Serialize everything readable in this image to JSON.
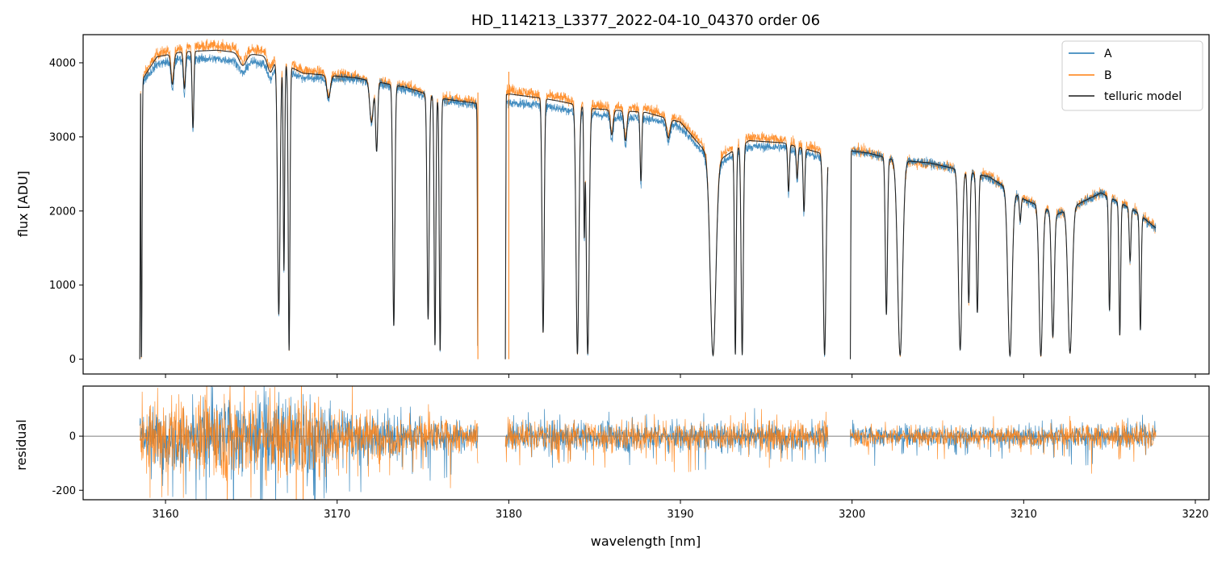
{
  "figure": {
    "title": "HD_114213_L3377_2022-04-10_04370  order 06"
  },
  "colors": {
    "A": "#1f77b4",
    "B": "#ff7f0e",
    "model": "#1a1a1a",
    "zero_line": "#555555"
  },
  "chart_data": [
    {
      "type": "line",
      "panel": "spectrum",
      "xlabel": "",
      "ylabel": "flux [ADU]",
      "xlim": [
        3155.2,
        3220.8
      ],
      "ylim": [
        -200,
        4380
      ],
      "y_ticks": [
        0,
        1000,
        2000,
        3000,
        4000
      ],
      "x_ticks": [
        3160,
        3170,
        3180,
        3190,
        3200,
        3210,
        3220
      ],
      "grid": false,
      "legend_position": "top-right",
      "segments": [
        [
          3158.5,
          3178.2
        ],
        [
          3179.8,
          3198.6
        ],
        [
          3199.9,
          3217.7
        ]
      ],
      "series": [
        {
          "name": "A",
          "note_values": "approximate continuum envelope of series A, nm vs ADU",
          "continuum": [
            [
              3158.5,
              3700
            ],
            [
              3159.5,
              3980
            ],
            [
              3161,
              4060
            ],
            [
              3163,
              4050
            ],
            [
              3166,
              3990
            ],
            [
              3168,
              3800
            ],
            [
              3171,
              3780
            ],
            [
              3174,
              3640
            ],
            [
              3176,
              3500
            ],
            [
              3178.2,
              3420
            ],
            [
              3180,
              3460
            ],
            [
              3182,
              3430
            ],
            [
              3183,
              3380
            ],
            [
              3185,
              3300
            ],
            [
              3188,
              3250
            ],
            [
              3190,
              3130
            ],
            [
              3192,
              2600
            ],
            [
              3194,
              2870
            ],
            [
              3196,
              2860
            ],
            [
              3198.5,
              2700
            ],
            [
              3200,
              2800
            ],
            [
              3201,
              2770
            ],
            [
              3202.5,
              2700
            ],
            [
              3204.5,
              2650
            ],
            [
              3206,
              2560
            ],
            [
              3208,
              2440
            ],
            [
              3210,
              2150
            ],
            [
              3212,
              1950
            ],
            [
              3214.5,
              2240
            ],
            [
              3216.5,
              1990
            ],
            [
              3217.7,
              1760
            ]
          ]
        },
        {
          "name": "B",
          "continuum": [
            [
              3158.5,
              3750
            ],
            [
              3159.5,
              4120
            ],
            [
              3161,
              4220
            ],
            [
              3163,
              4230
            ],
            [
              3166,
              4150
            ],
            [
              3168,
              3900
            ],
            [
              3171,
              3820
            ],
            [
              3174,
              3690
            ],
            [
              3176,
              3540
            ],
            [
              3178.2,
              3470
            ],
            [
              3180,
              3640
            ],
            [
              3182,
              3560
            ],
            [
              3183,
              3530
            ],
            [
              3185,
              3430
            ],
            [
              3188,
              3380
            ],
            [
              3190,
              3230
            ],
            [
              3192,
              2700
            ],
            [
              3194,
              3000
            ],
            [
              3196,
              2960
            ],
            [
              3198.5,
              2800
            ],
            [
              3200,
              2830
            ],
            [
              3201,
              2790
            ],
            [
              3202.5,
              2680
            ],
            [
              3204.5,
              2640
            ],
            [
              3206,
              2580
            ],
            [
              3208,
              2470
            ],
            [
              3210,
              2170
            ],
            [
              3212,
              1970
            ],
            [
              3214.5,
              2250
            ],
            [
              3216.5,
              2010
            ],
            [
              3217.7,
              1780
            ]
          ]
        },
        {
          "name": "telluric model",
          "continuum": [
            [
              3158.5,
              3720
            ],
            [
              3159.5,
              4080
            ],
            [
              3161,
              4150
            ],
            [
              3163,
              4170
            ],
            [
              3166,
              4090
            ],
            [
              3168,
              3860
            ],
            [
              3171,
              3800
            ],
            [
              3174,
              3670
            ],
            [
              3176,
              3520
            ],
            [
              3178.2,
              3450
            ],
            [
              3180,
              3580
            ],
            [
              3182,
              3520
            ],
            [
              3183,
              3480
            ],
            [
              3185,
              3380
            ],
            [
              3188,
              3330
            ],
            [
              3190,
              3200
            ],
            [
              3192,
              2650
            ],
            [
              3194,
              2950
            ],
            [
              3196,
              2920
            ],
            [
              3198.5,
              2760
            ],
            [
              3200,
              2810
            ],
            [
              3201,
              2780
            ],
            [
              3202.5,
              2690
            ],
            [
              3204.5,
              2650
            ],
            [
              3206,
              2570
            ],
            [
              3208,
              2460
            ],
            [
              3210,
              2160
            ],
            [
              3212,
              1960
            ],
            [
              3214.5,
              2245
            ],
            [
              3216.5,
              2000
            ],
            [
              3217.7,
              1770
            ]
          ]
        }
      ],
      "absorption_lines": [
        {
          "x": 3158.6,
          "depth": 1.0,
          "w": 0.08
        },
        {
          "x": 3160.4,
          "depth": 0.1,
          "w": 0.2
        },
        {
          "x": 3161.1,
          "depth": 0.12,
          "w": 0.15
        },
        {
          "x": 3161.6,
          "depth": 0.25,
          "w": 0.12
        },
        {
          "x": 3164.5,
          "depth": 0.04,
          "w": 0.5
        },
        {
          "x": 3166.1,
          "depth": 0.05,
          "w": 0.4
        },
        {
          "x": 3166.6,
          "depth": 0.85,
          "w": 0.18
        },
        {
          "x": 3166.9,
          "depth": 0.7,
          "w": 0.1
        },
        {
          "x": 3167.2,
          "depth": 0.97,
          "w": 0.12
        },
        {
          "x": 3169.5,
          "depth": 0.08,
          "w": 0.25
        },
        {
          "x": 3172.0,
          "depth": 0.15,
          "w": 0.25
        },
        {
          "x": 3172.3,
          "depth": 0.25,
          "w": 0.15
        },
        {
          "x": 3173.3,
          "depth": 0.88,
          "w": 0.15
        },
        {
          "x": 3175.3,
          "depth": 0.85,
          "w": 0.15
        },
        {
          "x": 3175.7,
          "depth": 0.95,
          "w": 0.12
        },
        {
          "x": 3176.0,
          "depth": 0.97,
          "w": 0.12
        },
        {
          "x": 3178.2,
          "depth": 1.0,
          "w": 0.06
        },
        {
          "x": 3182.0,
          "depth": 0.9,
          "w": 0.15
        },
        {
          "x": 3184.0,
          "depth": 0.98,
          "w": 0.2
        },
        {
          "x": 3184.4,
          "depth": 0.5,
          "w": 0.08
        },
        {
          "x": 3184.6,
          "depth": 0.98,
          "w": 0.2
        },
        {
          "x": 3186.0,
          "depth": 0.1,
          "w": 0.2
        },
        {
          "x": 3186.8,
          "depth": 0.12,
          "w": 0.2
        },
        {
          "x": 3187.7,
          "depth": 0.28,
          "w": 0.12
        },
        {
          "x": 3189.3,
          "depth": 0.08,
          "w": 0.25
        },
        {
          "x": 3191.9,
          "depth": 0.98,
          "w": 0.4
        },
        {
          "x": 3193.2,
          "depth": 0.98,
          "w": 0.12
        },
        {
          "x": 3193.6,
          "depth": 0.98,
          "w": 0.15
        },
        {
          "x": 3196.3,
          "depth": 0.22,
          "w": 0.12
        },
        {
          "x": 3196.8,
          "depth": 0.15,
          "w": 0.12
        },
        {
          "x": 3197.2,
          "depth": 0.3,
          "w": 0.12
        },
        {
          "x": 3198.4,
          "depth": 0.98,
          "w": 0.2
        },
        {
          "x": 3202.0,
          "depth": 0.78,
          "w": 0.15
        },
        {
          "x": 3202.8,
          "depth": 0.98,
          "w": 0.35
        },
        {
          "x": 3206.3,
          "depth": 0.95,
          "w": 0.25
        },
        {
          "x": 3206.8,
          "depth": 0.7,
          "w": 0.15
        },
        {
          "x": 3207.3,
          "depth": 0.75,
          "w": 0.15
        },
        {
          "x": 3209.2,
          "depth": 0.98,
          "w": 0.3
        },
        {
          "x": 3209.8,
          "depth": 0.15,
          "w": 0.12
        },
        {
          "x": 3211.0,
          "depth": 0.98,
          "w": 0.25
        },
        {
          "x": 3211.7,
          "depth": 0.85,
          "w": 0.2
        },
        {
          "x": 3212.7,
          "depth": 0.96,
          "w": 0.3
        },
        {
          "x": 3215.0,
          "depth": 0.7,
          "w": 0.12
        },
        {
          "x": 3215.6,
          "depth": 0.85,
          "w": 0.12
        },
        {
          "x": 3216.2,
          "depth": 0.35,
          "w": 0.12
        },
        {
          "x": 3216.8,
          "depth": 0.8,
          "w": 0.12
        }
      ],
      "spikes": [
        {
          "x": 3178.2,
          "y": 3600
        },
        {
          "x": 3180.0,
          "y": 3880
        }
      ]
    },
    {
      "type": "line",
      "panel": "residual",
      "xlabel": "wavelength [nm]",
      "ylabel": "residual",
      "xlim": [
        3155.2,
        3220.8
      ],
      "ylim": [
        -235,
        185
      ],
      "y_ticks": [
        -200,
        0
      ],
      "x_ticks": [
        3160,
        3170,
        3180,
        3190,
        3200,
        3210,
        3220
      ],
      "grid": false,
      "zero_line": 0,
      "series": [
        {
          "name": "A",
          "noise_level": [
            [
              3158.5,
              80
            ],
            [
              3160,
              130
            ],
            [
              3168,
              150
            ],
            [
              3170,
              110
            ],
            [
              3174,
              75
            ],
            [
              3178.2,
              55
            ],
            [
              3180,
              55
            ],
            [
              3190,
              55
            ],
            [
              3198.6,
              55
            ],
            [
              3200,
              35
            ],
            [
              3210,
              40
            ],
            [
              3217.7,
              50
            ]
          ]
        },
        {
          "name": "B",
          "noise_level": [
            [
              3158.5,
              85
            ],
            [
              3160,
              140
            ],
            [
              3168,
              160
            ],
            [
              3170,
              115
            ],
            [
              3174,
              75
            ],
            [
              3178.2,
              55
            ],
            [
              3180,
              55
            ],
            [
              3190,
              55
            ],
            [
              3198.6,
              55
            ],
            [
              3200,
              35
            ],
            [
              3210,
              40
            ],
            [
              3217.7,
              50
            ]
          ]
        }
      ]
    }
  ]
}
